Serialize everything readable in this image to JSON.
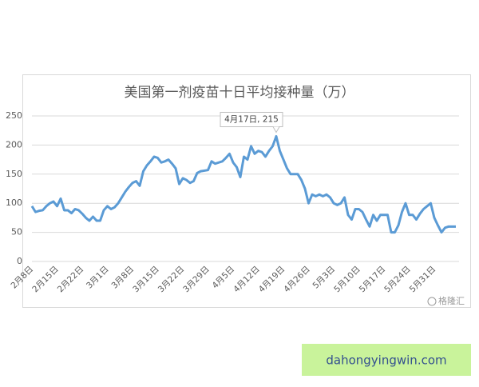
{
  "chart_data": {
    "type": "line",
    "title": "美国第一剂疫苗十日平均接种量（万）",
    "categories": [
      "2月8日",
      null,
      null,
      null,
      null,
      null,
      null,
      "2月15日",
      null,
      null,
      null,
      null,
      null,
      null,
      "2月22日",
      null,
      null,
      null,
      null,
      null,
      null,
      "3月1日",
      null,
      null,
      null,
      null,
      null,
      null,
      "3月8日",
      null,
      null,
      null,
      null,
      null,
      null,
      "3月15日",
      null,
      null,
      null,
      null,
      null,
      null,
      "3月22日",
      null,
      null,
      null,
      null,
      null,
      null,
      "3月29日",
      null,
      null,
      null,
      null,
      null,
      null,
      "4月5日",
      null,
      null,
      null,
      null,
      null,
      null,
      "4月12日",
      null,
      null,
      null,
      null,
      null,
      null,
      "4月19日",
      null,
      null,
      null,
      null,
      null,
      null,
      "4月26日",
      null,
      null,
      null,
      null,
      null,
      null,
      "5月3日",
      null,
      null,
      null,
      null,
      null,
      null,
      "5月10日",
      null,
      null,
      null,
      null,
      null,
      null,
      "5月17日",
      null,
      null,
      null,
      null,
      null,
      null,
      "5月24日",
      null,
      null,
      null,
      null,
      null,
      null,
      "5月31日",
      null,
      null,
      null,
      null,
      null,
      null
    ],
    "series": [
      {
        "color": "#5b9bd5",
        "values": [
          95,
          85,
          87,
          88,
          95,
          100,
          103,
          95,
          108,
          88,
          88,
          83,
          90,
          88,
          82,
          75,
          70,
          77,
          70,
          70,
          88,
          95,
          90,
          93,
          100,
          110,
          120,
          128,
          135,
          138,
          130,
          155,
          165,
          172,
          180,
          178,
          170,
          172,
          175,
          168,
          160,
          133,
          143,
          140,
          135,
          138,
          152,
          155,
          156,
          157,
          172,
          168,
          170,
          172,
          178,
          185,
          170,
          162,
          145,
          180,
          175,
          198,
          185,
          190,
          188,
          180,
          190,
          198,
          215,
          190,
          175,
          160,
          150,
          150,
          150,
          140,
          125,
          100,
          115,
          112,
          115,
          112,
          115,
          110,
          100,
          97,
          100,
          110,
          80,
          72,
          90,
          90,
          85,
          72,
          60,
          80,
          70,
          80,
          80,
          80,
          50,
          50,
          62,
          85,
          100,
          80,
          80,
          72,
          82,
          90,
          95,
          100,
          75,
          62,
          50,
          58,
          60,
          60,
          60
        ]
      }
    ],
    "ylim": [
      0,
      250
    ],
    "yticks": [
      0,
      50,
      100,
      150,
      200,
      250
    ],
    "grid": true,
    "annotation": "4月17日, 215"
  },
  "watermark": "格隆汇",
  "footer": "dahongyingwin.com"
}
